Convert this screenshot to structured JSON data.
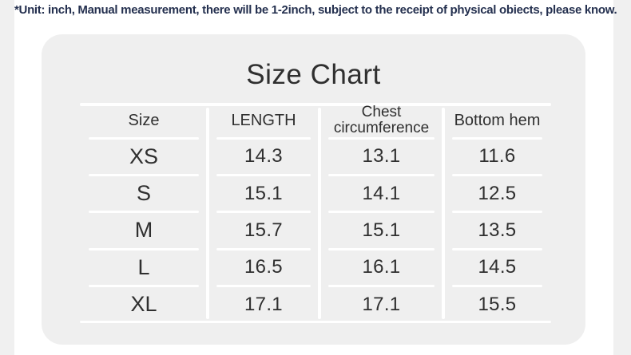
{
  "notice": {
    "text": "*Unit: inch, Manual measurement, there will be 1-2inch, subject to the receipt of physical obiects, please know."
  },
  "size_chart": {
    "title": "Size Chart",
    "columns": [
      "Size",
      "LENGTH",
      "Chest circumference",
      "Bottom hem"
    ],
    "rows": [
      {
        "size": "XS",
        "length": "14.3",
        "chest": "13.1",
        "bottom_hem": "11.6"
      },
      {
        "size": "S",
        "length": "15.1",
        "chest": "14.1",
        "bottom_hem": "12.5"
      },
      {
        "size": "M",
        "length": "15.7",
        "chest": "15.1",
        "bottom_hem": "13.5"
      },
      {
        "size": "L",
        "length": "16.5",
        "chest": "16.1",
        "bottom_hem": "14.5"
      },
      {
        "size": "XL",
        "length": "17.1",
        "chest": "17.1",
        "bottom_hem": "15.5"
      }
    ]
  },
  "chart_data": {
    "type": "table",
    "title": "Size Chart",
    "note": "*Unit: inch, Manual measurement, there will be 1-2inch, subject to the receipt of physical obiects, please know.",
    "columns": [
      "Size",
      "LENGTH",
      "Chest circumference",
      "Bottom hem"
    ],
    "rows": [
      [
        "XS",
        "14.3",
        "13.1",
        "11.6"
      ],
      [
        "S",
        "15.1",
        "14.1",
        "12.5"
      ],
      [
        "M",
        "15.7",
        "15.1",
        "13.5"
      ],
      [
        "L",
        "16.5",
        "16.1",
        "14.5"
      ],
      [
        "XL",
        "17.1",
        "17.1",
        "15.5"
      ]
    ]
  },
  "colors": {
    "notice_text": "#24304F",
    "card_background": "#EFEFEF",
    "table_lines": "#FFFFFF",
    "table_text": "#2F2F2F",
    "page_background": "#FFFFFF",
    "edge_strips": "#F0F0F0"
  }
}
